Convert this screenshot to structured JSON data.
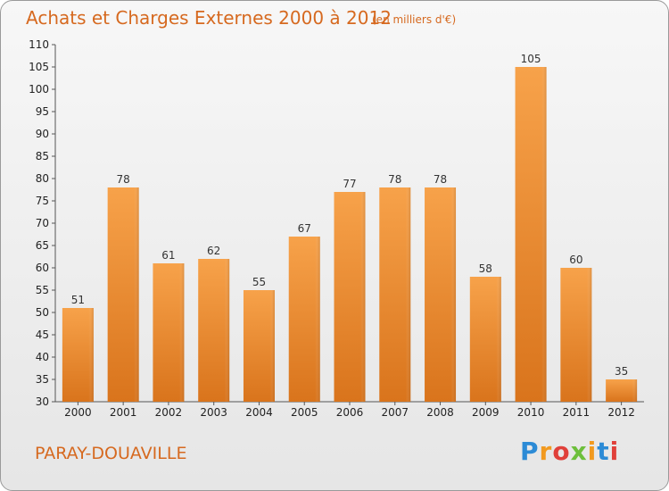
{
  "header": {
    "title": "Achats et Charges Externes 2000 à 2012",
    "subtitle": "(en milliers d'€)"
  },
  "footer": {
    "commune": "PARAY-DOUAVILLE",
    "logo": "Proxiti"
  },
  "colors": {
    "bar_top": "#f7a24a",
    "bar_bottom": "#d9741c",
    "text_accent": "#d6691f"
  },
  "chart_data": {
    "type": "bar",
    "categories": [
      "2000",
      "2001",
      "2002",
      "2003",
      "2004",
      "2005",
      "2006",
      "2007",
      "2008",
      "2009",
      "2010",
      "2011",
      "2012"
    ],
    "values": [
      51,
      78,
      61,
      62,
      55,
      67,
      77,
      78,
      78,
      58,
      105,
      60,
      35
    ],
    "title": "Achats et Charges Externes 2000 à 2012",
    "subtitle": "(en milliers d'€)",
    "ylim": [
      30,
      110
    ],
    "yticks": [
      30,
      35,
      40,
      45,
      50,
      55,
      60,
      65,
      70,
      75,
      80,
      85,
      90,
      95,
      100,
      105,
      110
    ],
    "grid": false,
    "data_labels": true
  }
}
